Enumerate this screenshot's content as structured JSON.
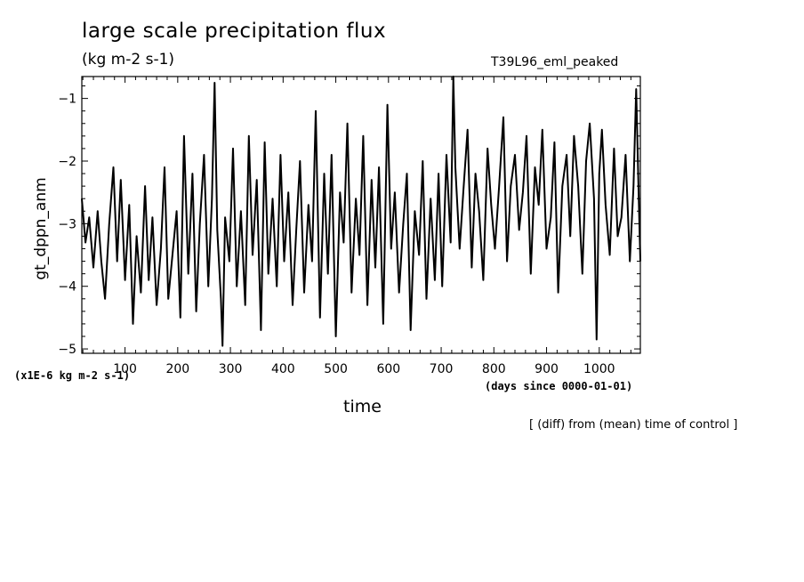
{
  "figure": {
    "title": "large scale precipitation flux",
    "units": "(kg m-2 s-1)",
    "run_name": "T39L96_eml_peaked",
    "note": "[ (diff) from (mean) time of control ]"
  },
  "chart_data": {
    "type": "line",
    "ylabel": "gt_dppn_anm",
    "yunits": "(x1E-6 kg m-2 s-1)",
    "xlabel": "time",
    "xunits": "(days since 0000-01-01)",
    "xlim": [
      18,
      1078
    ],
    "ylim": [
      -5.07,
      -0.65
    ],
    "xticks": [
      100,
      200,
      300,
      400,
      500,
      600,
      700,
      800,
      900,
      1000
    ],
    "yticks": [
      -1,
      -2,
      -3,
      -4,
      -5
    ],
    "grid": false,
    "series": [
      {
        "color": "#000000",
        "x": [
          18,
          25,
          32,
          40,
          48,
          55,
          62,
          70,
          78,
          85,
          92,
          100,
          108,
          115,
          122,
          130,
          138,
          145,
          152,
          160,
          168,
          175,
          182,
          190,
          198,
          205,
          212,
          220,
          228,
          235,
          242,
          250,
          258,
          265,
          270,
          275,
          282,
          285,
          290,
          298,
          305,
          312,
          320,
          328,
          335,
          342,
          350,
          358,
          365,
          372,
          380,
          388,
          395,
          402,
          410,
          418,
          425,
          432,
          440,
          448,
          455,
          462,
          470,
          478,
          485,
          492,
          500,
          508,
          515,
          522,
          530,
          538,
          545,
          552,
          560,
          568,
          575,
          582,
          590,
          598,
          605,
          612,
          620,
          628,
          635,
          642,
          650,
          658,
          665,
          672,
          680,
          688,
          695,
          702,
          710,
          718,
          723,
          727,
          735,
          742,
          750,
          758,
          765,
          772,
          780,
          788,
          795,
          802,
          810,
          818,
          825,
          832,
          840,
          848,
          855,
          862,
          870,
          878,
          885,
          892,
          900,
          908,
          915,
          922,
          930,
          938,
          945,
          952,
          960,
          968,
          975,
          982,
          990,
          995,
          1000,
          1005,
          1012,
          1020,
          1028,
          1035,
          1042,
          1050,
          1058,
          1065,
          1070,
          1075,
          1078
        ],
        "values": [
          -2.6,
          -3.3,
          -2.9,
          -3.7,
          -2.8,
          -3.6,
          -4.2,
          -3.0,
          -2.1,
          -3.6,
          -2.3,
          -3.9,
          -2.7,
          -4.6,
          -3.2,
          -4.1,
          -2.4,
          -3.9,
          -2.9,
          -4.3,
          -3.4,
          -2.1,
          -4.2,
          -3.5,
          -2.8,
          -4.5,
          -1.6,
          -3.8,
          -2.2,
          -4.4,
          -3.0,
          -1.9,
          -4.0,
          -2.6,
          -0.75,
          -3.1,
          -4.2,
          -4.95,
          -2.9,
          -3.6,
          -1.8,
          -4.0,
          -2.8,
          -4.3,
          -1.6,
          -3.5,
          -2.3,
          -4.7,
          -1.7,
          -3.8,
          -2.6,
          -4.0,
          -1.9,
          -3.6,
          -2.5,
          -4.3,
          -3.1,
          -2.0,
          -4.1,
          -2.7,
          -3.6,
          -1.2,
          -4.5,
          -2.2,
          -3.8,
          -1.9,
          -4.8,
          -2.5,
          -3.3,
          -1.4,
          -4.1,
          -2.6,
          -3.5,
          -1.6,
          -4.3,
          -2.3,
          -3.7,
          -2.1,
          -4.6,
          -1.1,
          -3.4,
          -2.5,
          -4.1,
          -3.0,
          -2.2,
          -4.7,
          -2.8,
          -3.5,
          -2.0,
          -4.2,
          -2.6,
          -3.9,
          -2.2,
          -4.0,
          -1.9,
          -3.3,
          -0.65,
          -2.1,
          -3.4,
          -2.5,
          -1.5,
          -3.7,
          -2.2,
          -2.8,
          -3.9,
          -1.8,
          -2.7,
          -3.4,
          -2.4,
          -1.3,
          -3.6,
          -2.4,
          -1.9,
          -3.1,
          -2.5,
          -1.6,
          -3.8,
          -2.1,
          -2.7,
          -1.5,
          -3.4,
          -2.9,
          -1.7,
          -4.1,
          -2.4,
          -1.9,
          -3.2,
          -1.6,
          -2.4,
          -3.8,
          -2.0,
          -1.4,
          -2.6,
          -4.85,
          -2.2,
          -1.5,
          -2.7,
          -3.5,
          -1.8,
          -3.2,
          -2.9,
          -1.9,
          -3.6,
          -2.4,
          -0.85,
          -2.6,
          -3.6
        ]
      }
    ]
  }
}
